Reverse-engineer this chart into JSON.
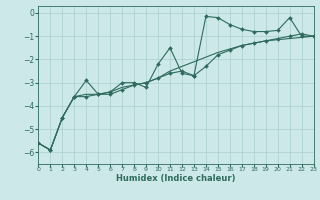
{
  "title": "",
  "xlabel": "Humidex (Indice chaleur)",
  "bg_color": "#cce8e8",
  "line_color": "#2e6b5e",
  "grid_color": "#aacfcf",
  "xlim": [
    0,
    23
  ],
  "ylim": [
    -6.5,
    0.3
  ],
  "xticks": [
    0,
    1,
    2,
    3,
    4,
    5,
    6,
    7,
    8,
    9,
    10,
    11,
    12,
    13,
    14,
    15,
    16,
    17,
    18,
    19,
    20,
    21,
    22,
    23
  ],
  "yticks": [
    0,
    -1,
    -2,
    -3,
    -4,
    -5,
    -6
  ],
  "series1": [
    [
      0,
      -5.6
    ],
    [
      1,
      -5.9
    ],
    [
      2,
      -4.5
    ],
    [
      3,
      -3.6
    ],
    [
      4,
      -2.9
    ],
    [
      5,
      -3.5
    ],
    [
      6,
      -3.4
    ],
    [
      7,
      -3.0
    ],
    [
      8,
      -3.0
    ],
    [
      9,
      -3.2
    ],
    [
      10,
      -2.2
    ],
    [
      11,
      -1.5
    ],
    [
      12,
      -2.6
    ],
    [
      13,
      -2.7
    ],
    [
      14,
      -0.15
    ],
    [
      15,
      -0.2
    ],
    [
      16,
      -0.5
    ],
    [
      17,
      -0.7
    ],
    [
      18,
      -0.8
    ],
    [
      19,
      -0.8
    ],
    [
      20,
      -0.75
    ],
    [
      21,
      -0.2
    ],
    [
      22,
      -1.0
    ],
    [
      23,
      -1.0
    ]
  ],
  "series2": [
    [
      0,
      -5.6
    ],
    [
      1,
      -5.9
    ],
    [
      2,
      -4.5
    ],
    [
      3,
      -3.6
    ],
    [
      4,
      -3.5
    ],
    [
      5,
      -3.5
    ],
    [
      6,
      -3.4
    ],
    [
      7,
      -3.2
    ],
    [
      8,
      -3.1
    ],
    [
      9,
      -3.0
    ],
    [
      10,
      -2.8
    ],
    [
      11,
      -2.5
    ],
    [
      12,
      -2.3
    ],
    [
      13,
      -2.1
    ],
    [
      14,
      -1.9
    ],
    [
      15,
      -1.7
    ],
    [
      16,
      -1.55
    ],
    [
      17,
      -1.4
    ],
    [
      18,
      -1.3
    ],
    [
      19,
      -1.2
    ],
    [
      20,
      -1.15
    ],
    [
      21,
      -1.1
    ],
    [
      22,
      -1.05
    ],
    [
      23,
      -1.0
    ]
  ],
  "series3": [
    [
      0,
      -5.6
    ],
    [
      1,
      -5.9
    ],
    [
      2,
      -4.5
    ],
    [
      3,
      -3.6
    ],
    [
      4,
      -3.6
    ],
    [
      5,
      -3.5
    ],
    [
      6,
      -3.5
    ],
    [
      7,
      -3.3
    ],
    [
      8,
      -3.1
    ],
    [
      9,
      -3.0
    ],
    [
      10,
      -2.8
    ],
    [
      11,
      -2.6
    ],
    [
      12,
      -2.5
    ],
    [
      13,
      -2.7
    ],
    [
      14,
      -2.3
    ],
    [
      15,
      -1.8
    ],
    [
      16,
      -1.6
    ],
    [
      17,
      -1.4
    ],
    [
      18,
      -1.3
    ],
    [
      19,
      -1.2
    ],
    [
      20,
      -1.1
    ],
    [
      21,
      -1.0
    ],
    [
      22,
      -0.9
    ],
    [
      23,
      -1.0
    ]
  ]
}
